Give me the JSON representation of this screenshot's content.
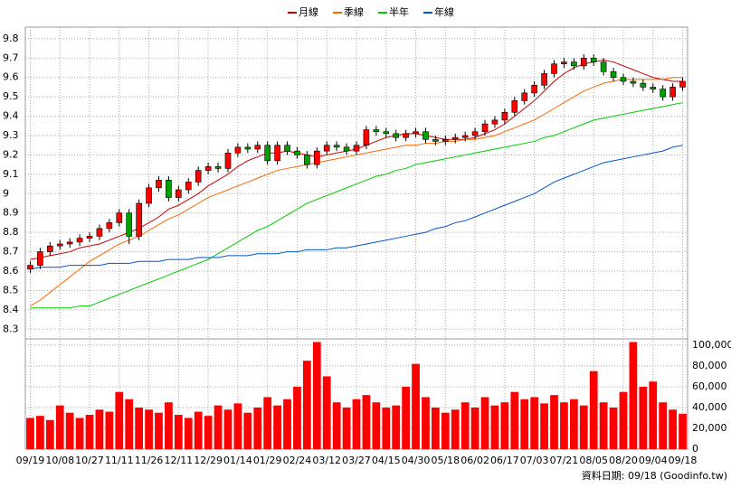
{
  "chart_data": {
    "type": "candlestick",
    "categories": [
      "09/19",
      null,
      null,
      "10/08",
      null,
      null,
      "10/27",
      null,
      null,
      "11/11",
      null,
      null,
      "11/26",
      null,
      null,
      "12/11",
      null,
      null,
      "12/29",
      null,
      null,
      "01/14",
      null,
      null,
      "01/29",
      null,
      null,
      "02/24",
      null,
      null,
      "03/12",
      null,
      null,
      "03/27",
      null,
      null,
      "04/15",
      null,
      null,
      "04/30",
      null,
      null,
      "05/18",
      null,
      null,
      "06/02",
      null,
      null,
      "06/17",
      null,
      null,
      "07/03",
      null,
      null,
      "07/21",
      null,
      null,
      "08/05",
      null,
      null,
      "08/20",
      null,
      null,
      "09/04",
      null,
      null,
      "09/18"
    ],
    "open": [
      8.61,
      8.63,
      8.7,
      8.73,
      8.74,
      8.75,
      8.77,
      8.78,
      8.82,
      8.85,
      8.9,
      8.78,
      8.95,
      9.03,
      9.07,
      8.98,
      9.02,
      9.06,
      9.12,
      9.14,
      9.13,
      9.21,
      9.24,
      9.23,
      9.25,
      9.17,
      9.25,
      9.22,
      9.2,
      9.15,
      9.22,
      9.25,
      9.24,
      9.22,
      9.25,
      9.33,
      9.32,
      9.31,
      9.29,
      9.31,
      9.32,
      9.28,
      9.27,
      9.28,
      9.29,
      9.3,
      9.32,
      9.36,
      9.38,
      9.42,
      9.48,
      9.52,
      9.56,
      9.62,
      9.67,
      9.68,
      9.66,
      9.7,
      9.68,
      9.63,
      9.6,
      9.58,
      9.57,
      9.55,
      9.54,
      9.5,
      9.55
    ],
    "high": [
      8.65,
      8.72,
      8.75,
      8.76,
      8.77,
      8.79,
      8.8,
      8.84,
      8.87,
      8.92,
      8.92,
      8.97,
      9.05,
      9.09,
      9.09,
      9.04,
      9.08,
      9.14,
      9.16,
      9.16,
      9.23,
      9.26,
      9.26,
      9.27,
      9.27,
      9.27,
      9.27,
      9.24,
      9.22,
      9.24,
      9.27,
      9.27,
      9.26,
      9.27,
      9.35,
      9.35,
      9.34,
      9.33,
      9.33,
      9.34,
      9.34,
      9.3,
      9.3,
      9.31,
      9.32,
      9.34,
      9.38,
      9.4,
      9.44,
      9.5,
      9.54,
      9.58,
      9.64,
      9.69,
      9.7,
      9.7,
      9.72,
      9.72,
      9.7,
      9.65,
      9.62,
      9.6,
      9.59,
      9.57,
      9.56,
      9.57,
      9.6
    ],
    "low": [
      8.59,
      8.61,
      8.68,
      8.71,
      8.72,
      8.73,
      8.75,
      8.76,
      8.8,
      8.83,
      8.74,
      8.76,
      8.93,
      9.01,
      8.96,
      8.96,
      9.0,
      9.04,
      9.1,
      9.11,
      9.11,
      9.19,
      9.21,
      9.21,
      9.15,
      9.15,
      9.2,
      9.18,
      9.13,
      9.13,
      9.2,
      9.22,
      9.2,
      9.2,
      9.23,
      9.3,
      9.29,
      9.27,
      9.27,
      9.29,
      9.26,
      9.25,
      9.25,
      9.26,
      9.27,
      9.28,
      9.3,
      9.34,
      9.36,
      9.4,
      9.46,
      9.5,
      9.54,
      9.6,
      9.65,
      9.64,
      9.64,
      9.66,
      9.61,
      9.58,
      9.56,
      9.55,
      9.53,
      9.52,
      9.48,
      9.48,
      9.53
    ],
    "close": [
      8.63,
      8.7,
      8.73,
      8.74,
      8.75,
      8.77,
      8.78,
      8.82,
      8.85,
      8.9,
      8.78,
      8.95,
      9.03,
      9.07,
      8.98,
      9.02,
      9.06,
      9.12,
      9.14,
      9.13,
      9.21,
      9.24,
      9.23,
      9.25,
      9.17,
      9.25,
      9.22,
      9.2,
      9.15,
      9.22,
      9.25,
      9.24,
      9.22,
      9.25,
      9.33,
      9.32,
      9.31,
      9.29,
      9.31,
      9.32,
      9.28,
      9.27,
      9.28,
      9.29,
      9.3,
      9.32,
      9.36,
      9.38,
      9.42,
      9.48,
      9.52,
      9.56,
      9.62,
      9.67,
      9.68,
      9.66,
      9.7,
      9.68,
      9.63,
      9.6,
      9.58,
      9.57,
      9.55,
      9.54,
      9.5,
      9.55,
      9.58
    ],
    "up_color": "#ff0000",
    "down_color": "#00a000",
    "series": [
      {
        "name": "月線",
        "color": "#cc0000",
        "values": [
          8.66,
          8.67,
          8.68,
          8.69,
          8.7,
          8.72,
          8.73,
          8.74,
          8.76,
          8.78,
          8.8,
          8.82,
          8.85,
          8.88,
          8.92,
          8.94,
          8.97,
          9.0,
          9.04,
          9.07,
          9.1,
          9.14,
          9.17,
          9.19,
          9.21,
          9.21,
          9.22,
          9.21,
          9.2,
          9.19,
          9.2,
          9.21,
          9.22,
          9.23,
          9.25,
          9.27,
          9.29,
          9.3,
          9.31,
          9.31,
          9.3,
          9.29,
          9.28,
          9.28,
          9.28,
          9.29,
          9.31,
          9.33,
          9.36,
          9.4,
          9.44,
          9.48,
          9.53,
          9.58,
          9.62,
          9.65,
          9.67,
          9.68,
          9.69,
          9.68,
          9.66,
          9.64,
          9.62,
          9.6,
          9.59,
          9.58,
          9.58
        ]
      },
      {
        "name": "季線",
        "color": "#ff6600",
        "values": [
          8.42,
          8.45,
          8.49,
          8.53,
          8.57,
          8.61,
          8.65,
          8.68,
          8.71,
          8.74,
          8.76,
          8.78,
          8.81,
          8.84,
          8.87,
          8.89,
          8.92,
          8.95,
          8.98,
          9.0,
          9.02,
          9.04,
          9.06,
          9.08,
          9.1,
          9.12,
          9.13,
          9.14,
          9.15,
          9.16,
          9.17,
          9.18,
          9.19,
          9.2,
          9.21,
          9.22,
          9.23,
          9.24,
          9.25,
          9.25,
          9.26,
          9.26,
          9.27,
          9.27,
          9.28,
          9.28,
          9.29,
          9.3,
          9.32,
          9.34,
          9.36,
          9.38,
          9.41,
          9.44,
          9.47,
          9.5,
          9.53,
          9.55,
          9.57,
          9.58,
          9.59,
          9.59,
          9.59,
          9.59,
          9.59,
          9.6,
          9.6
        ]
      },
      {
        "name": "半年",
        "color": "#00cc00",
        "values": [
          8.41,
          8.41,
          8.41,
          8.41,
          8.41,
          8.42,
          8.42,
          8.44,
          8.46,
          8.48,
          8.5,
          8.52,
          8.54,
          8.56,
          8.58,
          8.6,
          8.62,
          8.64,
          8.66,
          8.69,
          8.72,
          8.75,
          8.78,
          8.81,
          8.83,
          8.86,
          8.89,
          8.92,
          8.95,
          8.97,
          8.99,
          9.01,
          9.03,
          9.05,
          9.07,
          9.09,
          9.1,
          9.12,
          9.13,
          9.15,
          9.16,
          9.17,
          9.18,
          9.19,
          9.2,
          9.21,
          9.22,
          9.23,
          9.24,
          9.25,
          9.26,
          9.27,
          9.29,
          9.3,
          9.32,
          9.34,
          9.36,
          9.38,
          9.39,
          9.4,
          9.41,
          9.42,
          9.43,
          9.44,
          9.45,
          9.46,
          9.47
        ]
      },
      {
        "name": "年線",
        "color": "#0055cc",
        "values": [
          8.61,
          8.62,
          8.62,
          8.62,
          8.63,
          8.63,
          8.63,
          8.63,
          8.64,
          8.64,
          8.64,
          8.65,
          8.65,
          8.65,
          8.66,
          8.66,
          8.66,
          8.67,
          8.67,
          8.67,
          8.68,
          8.68,
          8.68,
          8.69,
          8.69,
          8.69,
          8.7,
          8.7,
          8.71,
          8.71,
          8.71,
          8.72,
          8.72,
          8.73,
          8.74,
          8.75,
          8.76,
          8.77,
          8.78,
          8.79,
          8.8,
          8.82,
          8.83,
          8.85,
          8.86,
          8.88,
          8.9,
          8.92,
          8.94,
          8.96,
          8.98,
          9.0,
          9.03,
          9.06,
          9.08,
          9.1,
          9.12,
          9.14,
          9.16,
          9.17,
          9.18,
          9.19,
          9.2,
          9.21,
          9.22,
          9.24,
          9.25
        ]
      }
    ],
    "volume": {
      "color": "#ff0000",
      "axis": "y2",
      "values": [
        30000,
        32000,
        28000,
        42000,
        35000,
        30000,
        33000,
        38000,
        36000,
        55000,
        48000,
        40000,
        38000,
        35000,
        45000,
        33000,
        30000,
        36000,
        32000,
        42000,
        38000,
        44000,
        35000,
        40000,
        50000,
        42000,
        48000,
        60000,
        85000,
        103000,
        70000,
        45000,
        40000,
        48000,
        52000,
        45000,
        40000,
        42000,
        60000,
        82000,
        50000,
        40000,
        35000,
        38000,
        45000,
        40000,
        50000,
        42000,
        45000,
        55000,
        48000,
        50000,
        44000,
        52000,
        45000,
        48000,
        42000,
        75000,
        45000,
        40000,
        55000,
        103000,
        60000,
        65000,
        45000,
        38000,
        34000
      ]
    },
    "ylim": [
      8.25,
      9.86
    ],
    "yticks": [
      8.3,
      8.4,
      8.5,
      8.6,
      8.7,
      8.8,
      8.9,
      9,
      9.1,
      9.2,
      9.3,
      9.4,
      9.5,
      9.6,
      9.7,
      9.8
    ],
    "y2lim": [
      0,
      106000
    ],
    "y2ticks": [
      0,
      {
        "value": 20000,
        "label": "20,000"
      },
      {
        "value": 40000,
        "label": "40,000"
      },
      {
        "value": 60000,
        "label": "60,000"
      },
      {
        "value": 80000,
        "label": "80,000"
      },
      {
        "value": 100000,
        "label": "100,000"
      }
    ],
    "grid": true,
    "legend": "top"
  },
  "footer": "資料日期: 09/18 (Goodinfo.tw)"
}
